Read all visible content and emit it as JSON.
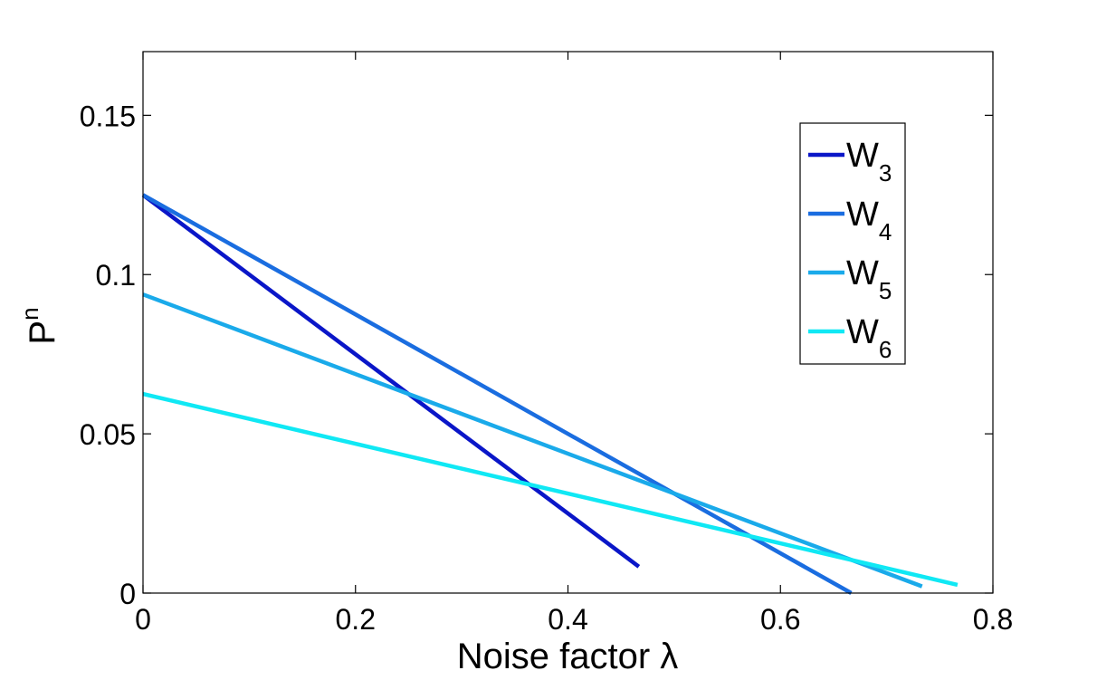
{
  "chart_data": {
    "type": "line",
    "title": "",
    "xlabel": "Noise factor λ",
    "ylabel": "P",
    "ylabel_superscript": "n",
    "xlim": [
      0,
      0.8
    ],
    "ylim": [
      0,
      0.17
    ],
    "xticks": [
      0,
      0.2,
      0.4,
      0.6,
      0.8
    ],
    "xtick_labels": [
      "0",
      "0.2",
      "0.4",
      "0.6",
      "0.8"
    ],
    "yticks": [
      0,
      0.05,
      0.1,
      0.15
    ],
    "ytick_labels": [
      "0",
      "0.05",
      "0.1",
      "0.15"
    ],
    "grid": false,
    "legend_position": "top-right",
    "series": [
      {
        "name": "W",
        "subscript": "3",
        "color": "#0a16c8",
        "x": [
          0,
          0.4667
        ],
        "y": [
          0.125,
          0.0083
        ]
      },
      {
        "name": "W",
        "subscript": "4",
        "color": "#1a6de0",
        "x": [
          0,
          0.6667
        ],
        "y": [
          0.125,
          0.0
        ]
      },
      {
        "name": "W",
        "subscript": "5",
        "color": "#1aaaea",
        "x": [
          0,
          0.7333
        ],
        "y": [
          0.09375,
          0.0021
        ]
      },
      {
        "name": "W",
        "subscript": "6",
        "color": "#10e8f4",
        "x": [
          0,
          0.7667
        ],
        "y": [
          0.0625,
          0.0026
        ]
      }
    ]
  }
}
